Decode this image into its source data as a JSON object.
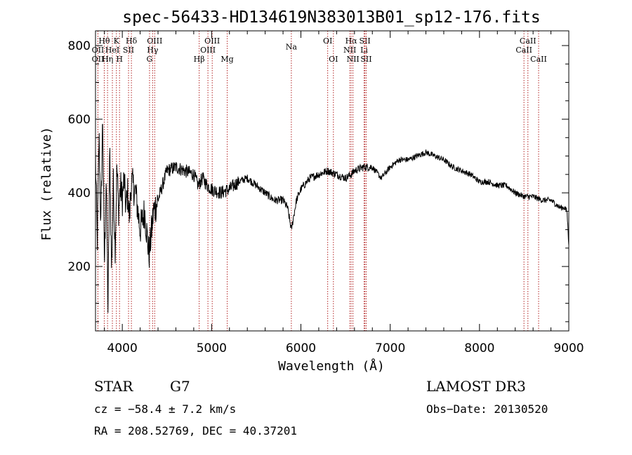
{
  "chart_data": {
    "type": "line",
    "title": "spec-56433-HD134619N383013B01_sp12-176.fits",
    "xlabel": "Wavelength (Å)",
    "ylabel": "Flux (relative)",
    "xlim": [
      3700,
      9000
    ],
    "ylim": [
      25,
      840
    ],
    "x_ticks": [
      4000,
      5000,
      6000,
      7000,
      8000,
      9000
    ],
    "y_ticks": [
      200,
      400,
      600,
      800
    ],
    "grid": false,
    "series": [
      {
        "name": "flux",
        "color": "#000000",
        "x": [
          3700,
          3720,
          3740,
          3760,
          3780,
          3800,
          3820,
          3840,
          3860,
          3880,
          3900,
          3920,
          3940,
          3960,
          3980,
          4000,
          4020,
          4040,
          4060,
          4080,
          4100,
          4150,
          4200,
          4250,
          4300,
          4350,
          4400,
          4450,
          4500,
          4600,
          4700,
          4800,
          4850,
          4900,
          4950,
          5000,
          5100,
          5200,
          5300,
          5400,
          5500,
          5600,
          5700,
          5800,
          5850,
          5893,
          5950,
          6000,
          6100,
          6200,
          6300,
          6400,
          6500,
          6563,
          6600,
          6700,
          6800,
          6900,
          7000,
          7100,
          7200,
          7300,
          7400,
          7500,
          7600,
          7700,
          7800,
          7900,
          8000,
          8100,
          8200,
          8300,
          8400,
          8500,
          8600,
          8700,
          8800,
          8900,
          8950,
          8980,
          9000
        ],
        "y": [
          500,
          260,
          560,
          300,
          610,
          200,
          450,
          80,
          520,
          180,
          430,
          250,
          470,
          350,
          420,
          380,
          440,
          360,
          400,
          330,
          430,
          400,
          300,
          350,
          230,
          350,
          380,
          420,
          460,
          470,
          460,
          450,
          420,
          440,
          420,
          410,
          400,
          410,
          430,
          440,
          420,
          400,
          380,
          380,
          360,
          300,
          380,
          410,
          440,
          450,
          460,
          450,
          440,
          450,
          460,
          470,
          470,
          440,
          470,
          490,
          490,
          500,
          510,
          500,
          490,
          470,
          460,
          450,
          430,
          430,
          420,
          420,
          400,
          390,
          390,
          380,
          380,
          360,
          360,
          350,
          260
        ]
      }
    ],
    "line_markers": [
      {
        "label": "Hθ",
        "x": 3798,
        "row": 1
      },
      {
        "label": "K",
        "x": 3934,
        "row": 1
      },
      {
        "label": "Hδ",
        "x": 4102,
        "row": 1
      },
      {
        "label": "OIII",
        "x": 4363,
        "row": 1
      },
      {
        "label": "OIII",
        "x": 5007,
        "row": 1
      },
      {
        "label": "OI",
        "x": 6300,
        "row": 1
      },
      {
        "label": "Hα",
        "x": 6563,
        "row": 1
      },
      {
        "label": "SII",
        "x": 6717,
        "row": 1
      },
      {
        "label": "CaII",
        "x": 8542,
        "row": 1
      },
      {
        "label": "OII",
        "x": 3727,
        "row": 2
      },
      {
        "label": "HeI",
        "x": 3889,
        "row": 2
      },
      {
        "label": "SII",
        "x": 4070,
        "row": 2
      },
      {
        "label": "Hγ",
        "x": 4340,
        "row": 2
      },
      {
        "label": "OIII",
        "x": 4959,
        "row": 2
      },
      {
        "label": "NII",
        "x": 6548,
        "row": 2
      },
      {
        "label": "Li",
        "x": 6708,
        "row": 2
      },
      {
        "label": "CaII",
        "x": 8498,
        "row": 2
      },
      {
        "label": "OII",
        "x": 3727,
        "row": 3
      },
      {
        "label": "Hη",
        "x": 3835,
        "row": 3
      },
      {
        "label": "H",
        "x": 3969,
        "row": 3
      },
      {
        "label": "G",
        "x": 4305,
        "row": 3
      },
      {
        "label": "Hβ",
        "x": 4861,
        "row": 3
      },
      {
        "label": "Mg",
        "x": 5175,
        "row": 3
      },
      {
        "label": "Na",
        "x": 5893,
        "row": 1.65
      },
      {
        "label": "OI",
        "x": 6364,
        "row": 3
      },
      {
        "label": "NII",
        "x": 6583,
        "row": 3
      },
      {
        "label": "SII",
        "x": 6731,
        "row": 3
      },
      {
        "label": "CaII",
        "x": 8662,
        "row": 3
      }
    ],
    "marker_color": "#b22222"
  },
  "info": {
    "object_class": "STAR",
    "subclass": "G7",
    "survey": "LAMOST DR3",
    "cz_line": "cz = −58.4 ± 7.2 km/s",
    "obs_date_line": "Obs−Date: 20130520",
    "radec_line": "RA = 208.52769, DEC =  40.37201"
  }
}
